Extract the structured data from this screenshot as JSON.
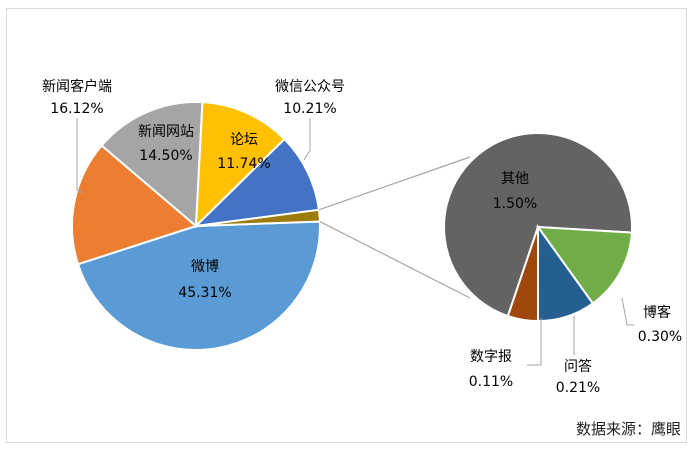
{
  "chart_data": {
    "type": "pie",
    "subtype": "pie-of-pie",
    "main_slices": [
      {
        "name": "微博",
        "label": "45.31%",
        "value": 45.31,
        "color": "#5b9bd5"
      },
      {
        "name": "新闻客户端",
        "label": "16.12%",
        "value": 16.12,
        "color": "#ed7d31"
      },
      {
        "name": "新闻网站",
        "label": "14.50%",
        "value": 14.5,
        "color": "#a5a5a5"
      },
      {
        "name": "论坛",
        "label": "11.74%",
        "value": 11.74,
        "color": "#ffc000"
      },
      {
        "name": "微信公众号",
        "label": "10.21%",
        "value": 10.21,
        "color": "#4472c4"
      },
      {
        "name": "其他",
        "label": "1.50%",
        "value": 1.5,
        "color": "#9e7c0c"
      }
    ],
    "secondary_slices": [
      {
        "name": "其他",
        "label": "1.50%",
        "value": 1.5,
        "color": "#636363"
      },
      {
        "name": "博客",
        "label": "0.30%",
        "value": 0.3,
        "color": "#70ad47"
      },
      {
        "name": "问答",
        "label": "0.21%",
        "value": 0.21,
        "color": "#255e91"
      },
      {
        "name": "数字报",
        "label": "0.11%",
        "value": 0.11,
        "color": "#9e480e"
      }
    ],
    "source": "数据来源：鹰眼"
  }
}
